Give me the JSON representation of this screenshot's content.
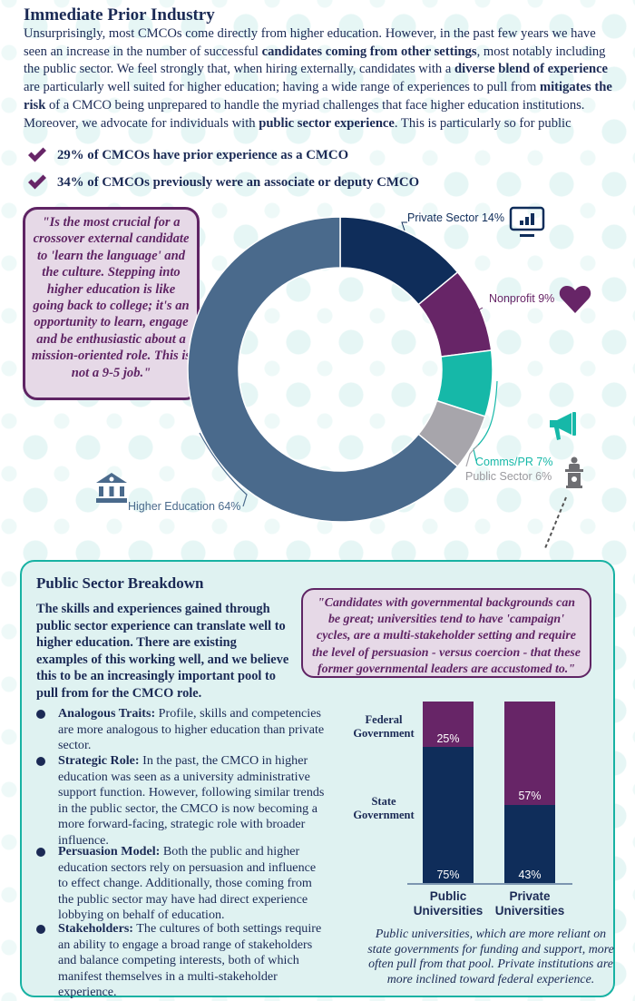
{
  "section1": {
    "title": "Immediate Prior Industry",
    "intro_parts": [
      {
        "t": "Unsurprisingly, most CMCOs come directly from higher education. However, in the past few years we have seen an increase in the number of successful ",
        "b": false
      },
      {
        "t": "candidates coming from other settings",
        "b": true
      },
      {
        "t": ", most notably including the public sector. We feel strongly that, when hiring externally, candidates with a ",
        "b": false
      },
      {
        "t": "diverse blend of experience",
        "b": true
      },
      {
        "t": " are particularly well suited for higher education; having a wide range of experiences to pull from ",
        "b": false
      },
      {
        "t": "mitigates the risk",
        "b": true
      },
      {
        "t": " of a CMCO being unprepared to handle the myriad challenges that face higher education institutions. Moreover, we advocate for individuals with ",
        "b": false
      },
      {
        "t": "public sector experience",
        "b": true
      },
      {
        "t": ". This is particularly so for public institutions, where the state government is often an important stakeholder, but it also holds true universally given the analogous nature of communications in governmental settings.",
        "b": false
      }
    ],
    "checks": [
      "29% of CMCOs have prior experience as a CMCO",
      "34% of CMCOs previously were an associate or deputy CMCO"
    ],
    "quote": "\"Is the most crucial for a crossover external candidate to 'learn the language' and the culture. Stepping into higher education is like going back to college; it's an opportunity to learn, engage and be enthusiastic about a mission-oriented role. This is not a 9-5 job.\""
  },
  "section2": {
    "title": "Public Sector Breakdown",
    "intro": "The skills and experiences gained through public sector experience can translate well to higher education. There are existing examples of this working well, and we believe this to be an increasingly important pool to pull from for the CMCO role.",
    "quote": "\"Candidates with governmental backgrounds can be great; universities tend to have 'campaign' cycles, are a multi-stakeholder setting and require the level of persuasion - versus coercion - that these former governmental leaders are accustomed to.\"",
    "bullets": [
      {
        "head": "Analogous Traits:",
        "body": " Profile, skills and competencies are more analogous to higher education than private sector."
      },
      {
        "head": "Strategic Role:",
        "body": " In the past, the CMCO in higher education was seen as a university administrative support function. However, following similar trends in the public sector, the CMCO is now becoming a more forward-facing, strategic role with broader influence."
      },
      {
        "head": "Persuasion Model:",
        "body": " Both the public and higher education sectors rely on persuasion and influence to effect change. Additionally, those coming from the public sector may have had direct experience lobbying on behalf of education."
      },
      {
        "head": "Stakeholders:",
        "body": " The cultures of both settings require an ability to engage a broad range of stakeholders and balance competing interests, both of which manifest themselves in a multi-stakeholder experience."
      }
    ],
    "caption": "Public universities, which are more reliant on state governments for funding and support, more often pull from that pool. Private institutions are more inclined toward federal experience."
  },
  "icons": {
    "private": "monitor-chart-icon",
    "nonprofit": "heart-icon",
    "comms": "megaphone-icon",
    "public": "podium-icon",
    "higher_ed": "university-building-icon",
    "check": "checkmark-icon"
  },
  "colors": {
    "navy": "#0f2d5a",
    "purple": "#672567",
    "teal": "#16b8a8",
    "gray": "#a7a5ab",
    "slate": "#4a6a8c",
    "panel_bg": "#dff2f1",
    "panel_border": "#18b2a3",
    "quote_bg": "#e6d9e7",
    "quote_border": "#5f2464"
  },
  "chart_data": [
    {
      "type": "pie",
      "variant": "donut",
      "title": "Immediate Prior Industry",
      "categories": [
        "Private Sector",
        "Nonprofit",
        "Comms/PR",
        "Public Sector",
        "Higher Education"
      ],
      "values": [
        14,
        9,
        7,
        6,
        64
      ],
      "labels": [
        "Private Sector 14%",
        "Nonprofit 9%",
        "Comms/PR 7%",
        "Public Sector 6%",
        "Higher Education 64%"
      ],
      "colors": [
        "#0f2d5a",
        "#672567",
        "#16b8a8",
        "#a7a5ab",
        "#4a6a8c"
      ],
      "unit": "%"
    },
    {
      "type": "bar",
      "stacked": true,
      "title": "Public Sector Breakdown",
      "categories": [
        "Public Universities",
        "Private Universities"
      ],
      "series": [
        {
          "name": "State Government",
          "values": [
            75,
            43
          ],
          "color": "#0f2d5a"
        },
        {
          "name": "Federal Government",
          "values": [
            25,
            57
          ],
          "color": "#672567"
        }
      ],
      "series_labels": [
        "Federal Government",
        "State Government"
      ],
      "value_labels": {
        "public_state": "75%",
        "public_federal": "25%",
        "private_state": "43%",
        "private_federal": "57%"
      },
      "ylim": [
        0,
        100
      ],
      "unit": "%",
      "legend_position": "left"
    }
  ]
}
